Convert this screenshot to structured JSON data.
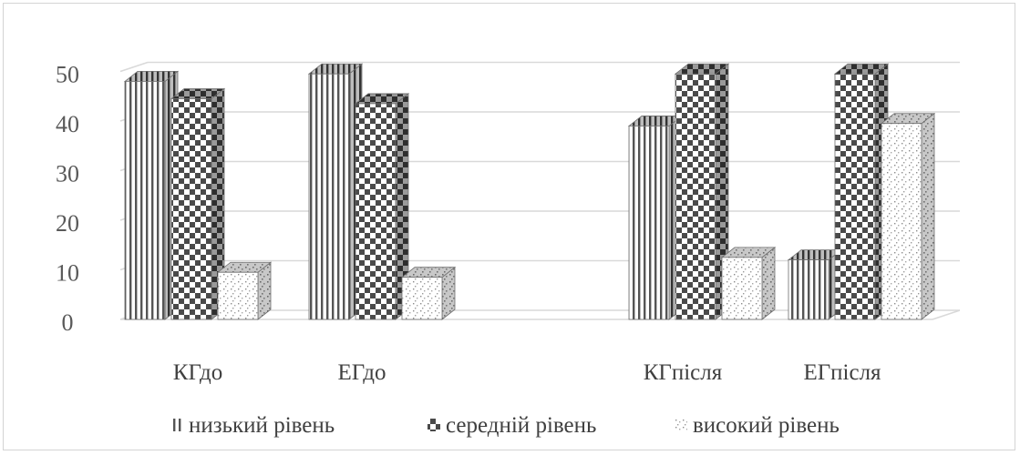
{
  "chart_data": {
    "type": "bar",
    "categories": [
      "КГдо",
      "ЕГдо",
      "",
      "КГпісля",
      "ЕГпісля"
    ],
    "series": [
      {
        "name": "низький рівень",
        "values": [
          48,
          49.5,
          null,
          39,
          12
        ]
      },
      {
        "name": "середній рівень",
        "values": [
          44.5,
          43.5,
          null,
          49.5,
          49.5
        ]
      },
      {
        "name": "високий рівень",
        "values": [
          9.5,
          8.5,
          null,
          12.5,
          39.5
        ]
      }
    ],
    "yticks": [
      "0",
      "10",
      "20",
      "30",
      "40",
      "50"
    ],
    "ylim": [
      0,
      50
    ],
    "grid": true,
    "legend": "bottom",
    "colors": {
      "gridline": "#d9d9d9",
      "bar_base": "#ffffff",
      "bar_dark": "#4a4a4a"
    }
  }
}
